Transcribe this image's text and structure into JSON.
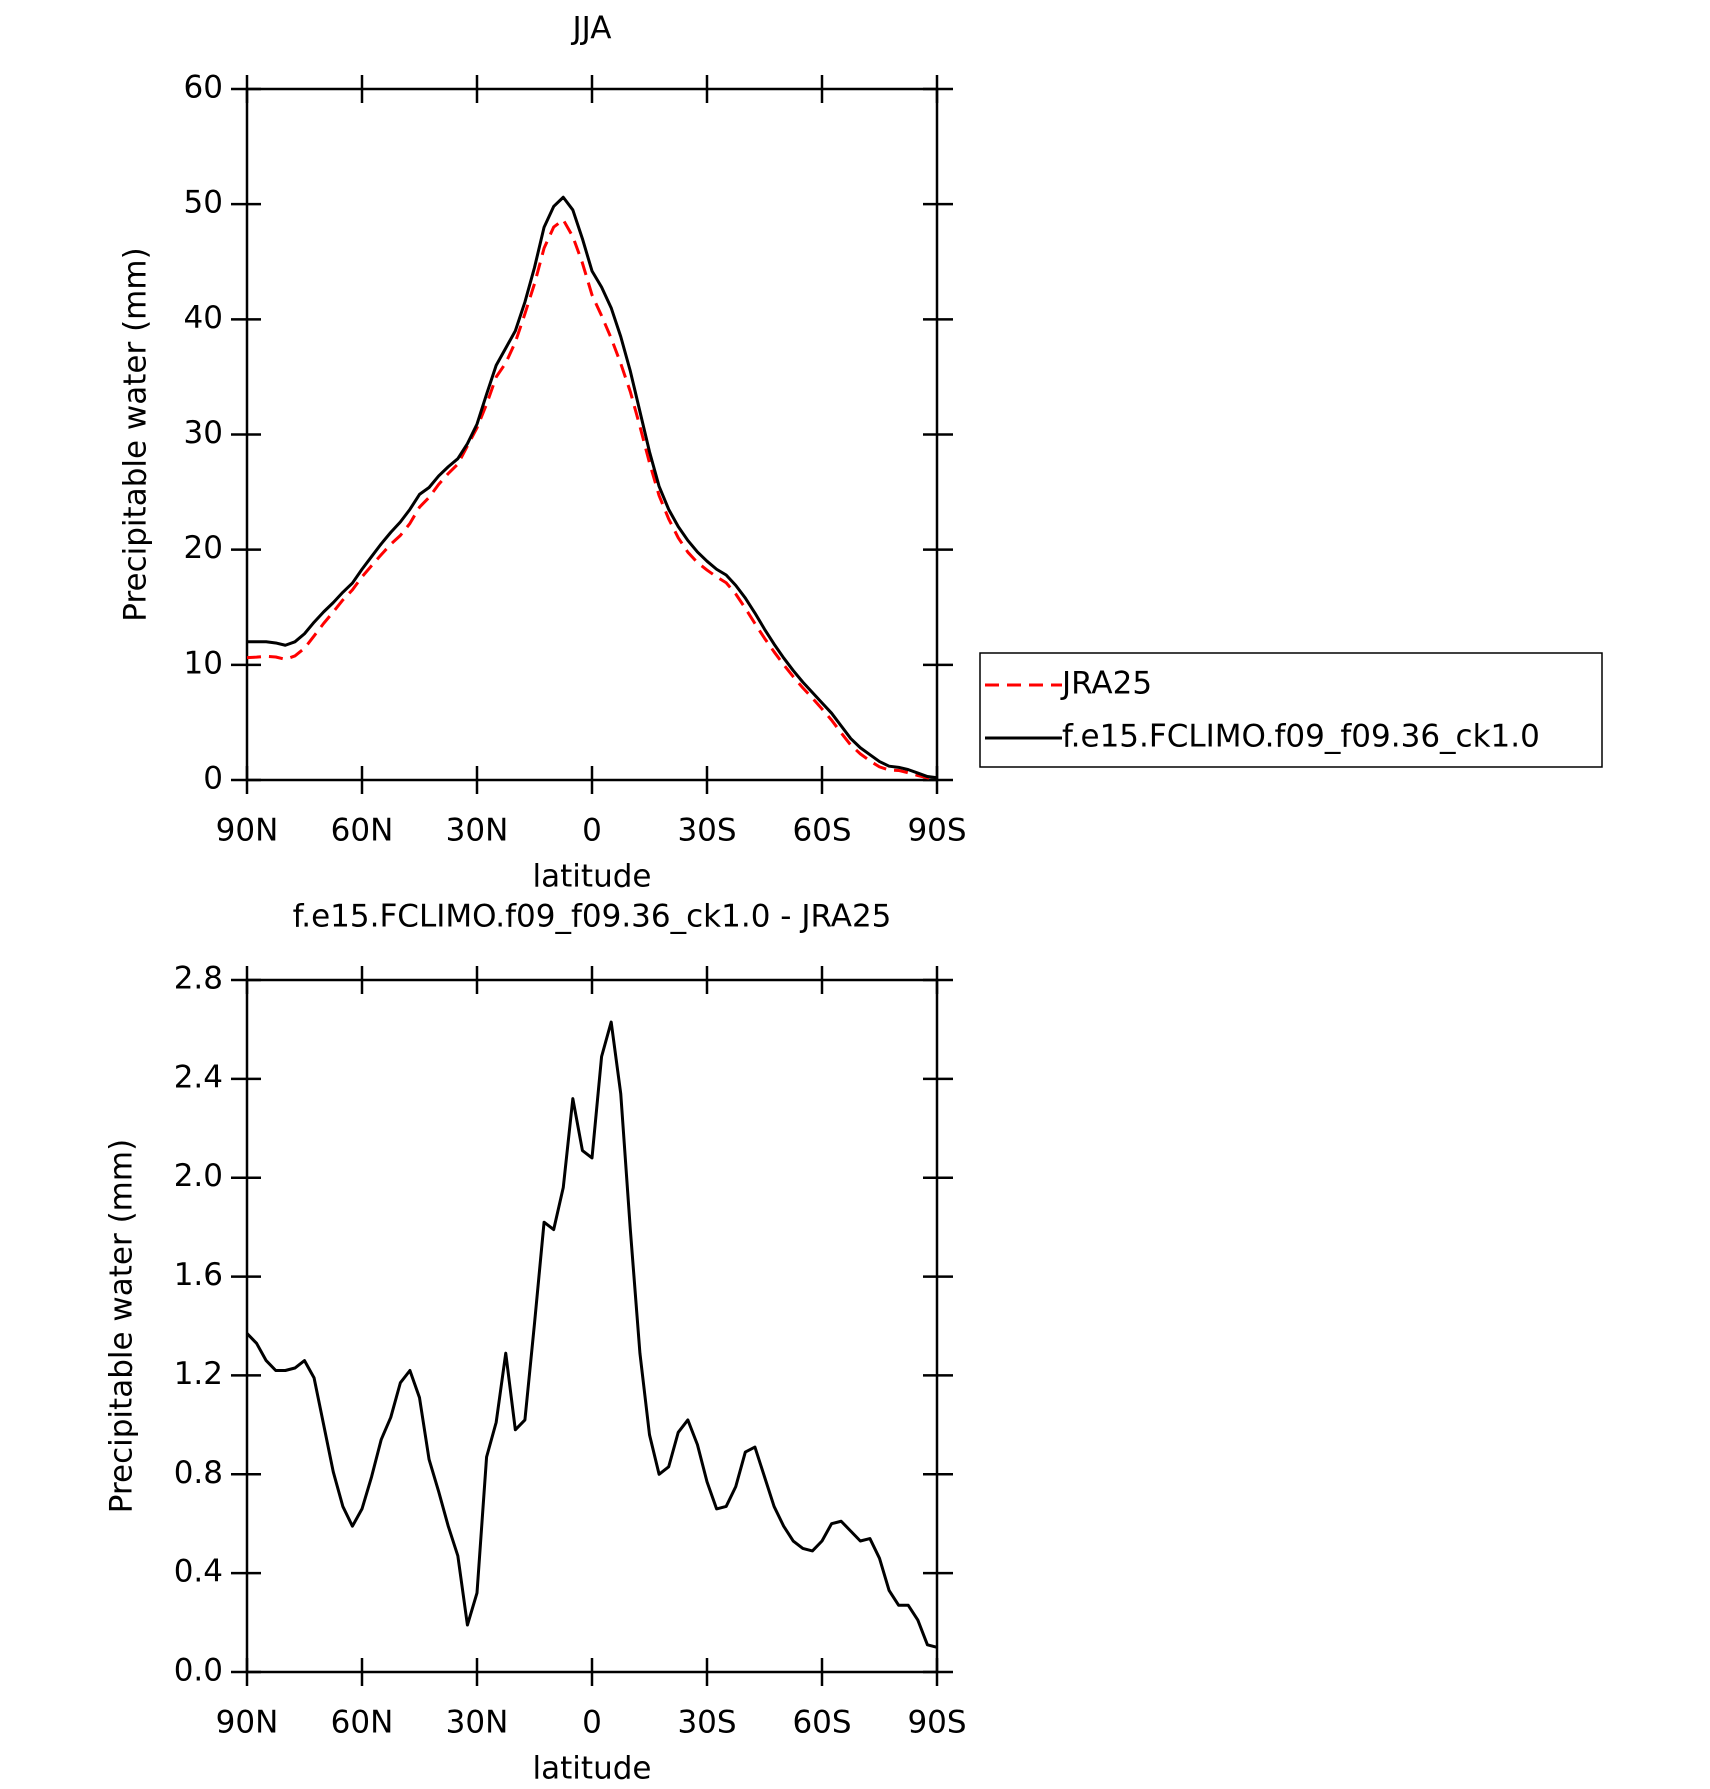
{
  "chart_data": [
    {
      "type": "line",
      "title": "JJA",
      "xlabel": "latitude",
      "ylabel": "Precipitable water (mm)",
      "x": [
        90,
        87.5,
        85,
        82.5,
        80,
        77.5,
        75,
        72.5,
        70,
        67.5,
        65,
        62.5,
        60,
        57.5,
        55,
        52.5,
        50,
        47.5,
        45,
        42.5,
        40,
        37.5,
        35,
        32.5,
        30,
        27.5,
        25,
        22.5,
        20,
        17.5,
        15,
        12.5,
        10,
        7.5,
        5,
        2.5,
        0,
        -2.5,
        -5,
        -7.5,
        -10,
        -12.5,
        -15,
        -17.5,
        -20,
        -22.5,
        -25,
        -27.5,
        -30,
        -32.5,
        -35,
        -37.5,
        -40,
        -42.5,
        -45,
        -47.5,
        -50,
        -52.5,
        -55,
        -57.5,
        -60,
        -62.5,
        -65,
        -67.5,
        -70,
        -72.5,
        -75,
        -77.5,
        -80,
        -82.5,
        -85,
        -87.5,
        -90
      ],
      "series": [
        {
          "name": "JRA25",
          "color": "#ff0000",
          "dash": true,
          "values": [
            10.63,
            10.67,
            10.74,
            10.68,
            10.48,
            10.77,
            11.44,
            12.51,
            13.6,
            14.59,
            15.63,
            16.51,
            17.64,
            18.61,
            19.56,
            20.47,
            21.23,
            22.28,
            23.69,
            24.54,
            25.67,
            26.61,
            27.43,
            29.01,
            30.58,
            32.63,
            34.99,
            36.21,
            38.02,
            40.48,
            43.09,
            46.18,
            48.01,
            48.64,
            47.18,
            44.89,
            42.12,
            40.31,
            38.37,
            36.16,
            33.71,
            30.71,
            27.54,
            24.7,
            22.67,
            21.03,
            19.78,
            18.88,
            18.23,
            17.64,
            17.13,
            16.15,
            14.91,
            13.59,
            12.31,
            11.13,
            10.01,
            8.97,
            8.0,
            7.11,
            6.17,
            5.2,
            4.09,
            3.03,
            2.27,
            1.66,
            1.14,
            0.87,
            0.83,
            0.63,
            0.39,
            0.19,
            0.1
          ]
        },
        {
          "name": "f.e15.FCLIMO.f09_f09.36_ck1.0",
          "color": "#000000",
          "dash": false,
          "values": [
            12,
            12,
            12,
            11.9,
            11.7,
            12,
            12.7,
            13.7,
            14.6,
            15.4,
            16.3,
            17.1,
            18.3,
            19.4,
            20.5,
            21.5,
            22.4,
            23.5,
            24.8,
            25.4,
            26.4,
            27.2,
            27.9,
            29.2,
            30.9,
            33.5,
            36,
            37.5,
            39,
            41.5,
            44.5,
            48,
            49.8,
            50.6,
            49.5,
            47,
            44.2,
            42.8,
            41,
            38.5,
            35.5,
            32,
            28.5,
            25.5,
            23.5,
            22,
            20.8,
            19.8,
            19,
            18.3,
            17.8,
            16.9,
            15.8,
            14.5,
            13.1,
            11.8,
            10.6,
            9.5,
            8.5,
            7.6,
            6.7,
            5.8,
            4.7,
            3.6,
            2.8,
            2.2,
            1.6,
            1.2,
            1.1,
            0.9,
            0.6,
            0.3,
            0.2
          ]
        }
      ],
      "xlim": [
        90,
        -90
      ],
      "xticks": [
        {
          "value": 90,
          "label": "90N"
        },
        {
          "value": 60,
          "label": "60N"
        },
        {
          "value": 30,
          "label": "30N"
        },
        0,
        {
          "value": -30,
          "label": "30S"
        },
        {
          "value": -60,
          "label": "60S"
        },
        {
          "value": -90,
          "label": "90S"
        }
      ],
      "ylim": [
        0,
        60
      ],
      "yticks": [
        0,
        10,
        20,
        30,
        40,
        50,
        60
      ],
      "legend": "right"
    },
    {
      "type": "line",
      "title": "f.e15.FCLIMO.f09_f09.36_ck1.0 - JRA25",
      "xlabel": "latitude",
      "ylabel": "Precipitable water (mm)",
      "x": [
        90,
        87.5,
        85,
        82.5,
        80,
        77.5,
        75,
        72.5,
        70,
        67.5,
        65,
        62.5,
        60,
        57.5,
        55,
        52.5,
        50,
        47.5,
        45,
        42.5,
        40,
        37.5,
        35,
        32.5,
        30,
        27.5,
        25,
        22.5,
        20,
        17.5,
        15,
        12.5,
        10,
        7.5,
        5,
        2.5,
        0,
        -2.5,
        -5,
        -7.5,
        -10,
        -12.5,
        -15,
        -17.5,
        -20,
        -22.5,
        -25,
        -27.5,
        -30,
        -32.5,
        -35,
        -37.5,
        -40,
        -42.5,
        -45,
        -47.5,
        -50,
        -52.5,
        -55,
        -57.5,
        -60,
        -62.5,
        -65,
        -67.5,
        -70,
        -72.5,
        -75,
        -77.5,
        -80,
        -82.5,
        -85,
        -87.5,
        -90
      ],
      "color": "#000000",
      "values": [
        1.37,
        1.33,
        1.26,
        1.22,
        1.22,
        1.23,
        1.26,
        1.19,
        1.0,
        0.81,
        0.67,
        0.59,
        0.66,
        0.79,
        0.94,
        1.03,
        1.17,
        1.22,
        1.11,
        0.86,
        0.73,
        0.59,
        0.47,
        0.19,
        0.32,
        0.87,
        1.01,
        1.29,
        0.98,
        1.02,
        1.41,
        1.82,
        1.79,
        1.96,
        2.32,
        2.11,
        2.08,
        2.49,
        2.63,
        2.34,
        1.79,
        1.29,
        0.96,
        0.8,
        0.83,
        0.97,
        1.02,
        0.92,
        0.77,
        0.66,
        0.67,
        0.75,
        0.89,
        0.91,
        0.79,
        0.67,
        0.59,
        0.53,
        0.5,
        0.49,
        0.53,
        0.6,
        0.61,
        0.57,
        0.53,
        0.54,
        0.46,
        0.33,
        0.27,
        0.27,
        0.21,
        0.11,
        0.1
      ],
      "xlim": [
        90,
        -90
      ],
      "xticks": [
        {
          "value": 90,
          "label": "90N"
        },
        {
          "value": 60,
          "label": "60N"
        },
        {
          "value": 30,
          "label": "30N"
        },
        0,
        {
          "value": -30,
          "label": "30S"
        },
        {
          "value": -60,
          "label": "60S"
        },
        {
          "value": -90,
          "label": "90S"
        }
      ],
      "ylim": [
        0,
        2.8
      ],
      "yticks": [
        {
          "value": 0,
          "label": "0.0"
        },
        0.4,
        0.8,
        1.2,
        1.6,
        {
          "value": 2,
          "label": "2.0"
        },
        2.4,
        2.8
      ]
    }
  ]
}
